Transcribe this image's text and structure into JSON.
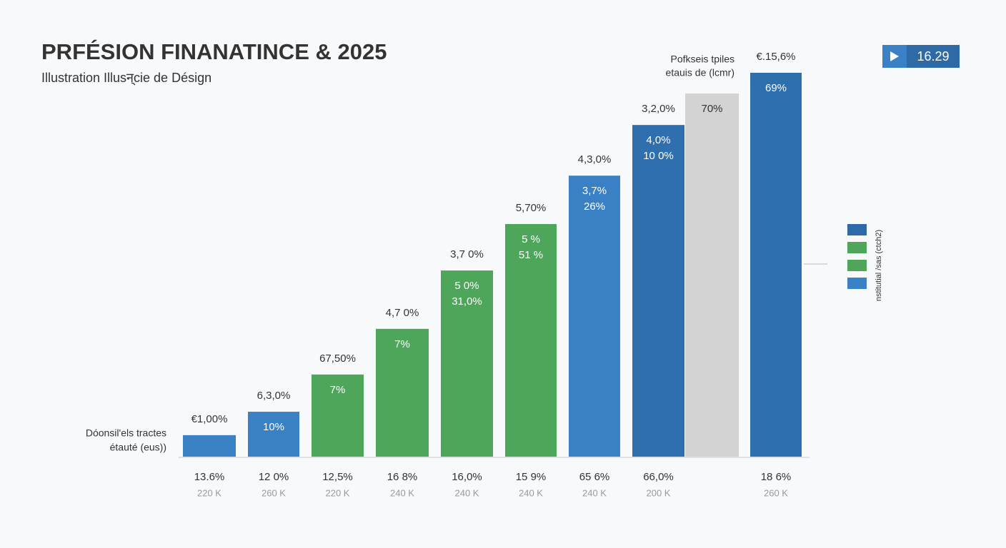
{
  "chart_data": {
    "type": "bar",
    "title": "PRFÉSION FINANATINCE & 2025",
    "subtitle": "Illustration Illusन्cie de Désign",
    "annotation_left": [
      "Dóonsil'els tractes",
      "étauté (eus))"
    ],
    "annotation_top": [
      "Pofkseis tpiles",
      "etauis de (lcmr)"
    ],
    "badge": "16.29",
    "categories": [
      "13.6%",
      "12 0%",
      "12,5%",
      "16 8%",
      "16,0%",
      "15 9%",
      "65 6%",
      "66,0%",
      null,
      "18 6%"
    ],
    "sublabels": [
      "220 K",
      "260 K",
      "220 K",
      "240 K",
      "240 K",
      "240 K",
      "240 K",
      "200 K",
      null,
      "260 K"
    ],
    "values": [
      5.6,
      11.7,
      21.4,
      33.3,
      48.5,
      60.6,
      73.2,
      86.4,
      94.6,
      100
    ],
    "colors": [
      "#3a80c4",
      "#3a80c4",
      "#4ea65a",
      "#4ea65a",
      "#4ea65a",
      "#4ea65a",
      "#3a80c4",
      "#2f6fae",
      "#d3d3d3",
      "#2e6fad"
    ],
    "top_labels": [
      "€1,00%",
      "6,3,0%",
      "67,50%",
      "4,7 0%",
      "3,7 0%",
      "5,70%",
      "4,3,0%",
      "3,2,0%",
      null,
      "€.15,6%"
    ],
    "inner_labels": [
      [],
      [
        "10%"
      ],
      [
        "7%"
      ],
      [
        "7%"
      ],
      [
        "5 0%",
        "31,0%"
      ],
      [
        "5 %",
        "51 %"
      ],
      [
        "3,7%",
        "26%"
      ],
      [
        "4,0%",
        "10 0%"
      ],
      [
        "70%"
      ],
      [
        "69%"
      ]
    ],
    "ylim": [
      0,
      100
    ],
    "legend": {
      "label": "nstitutial /sas (ctch2)",
      "colors": [
        "#2e6aa6",
        "#4ea65a",
        "#4ea65a",
        "#3a80c4"
      ]
    }
  }
}
